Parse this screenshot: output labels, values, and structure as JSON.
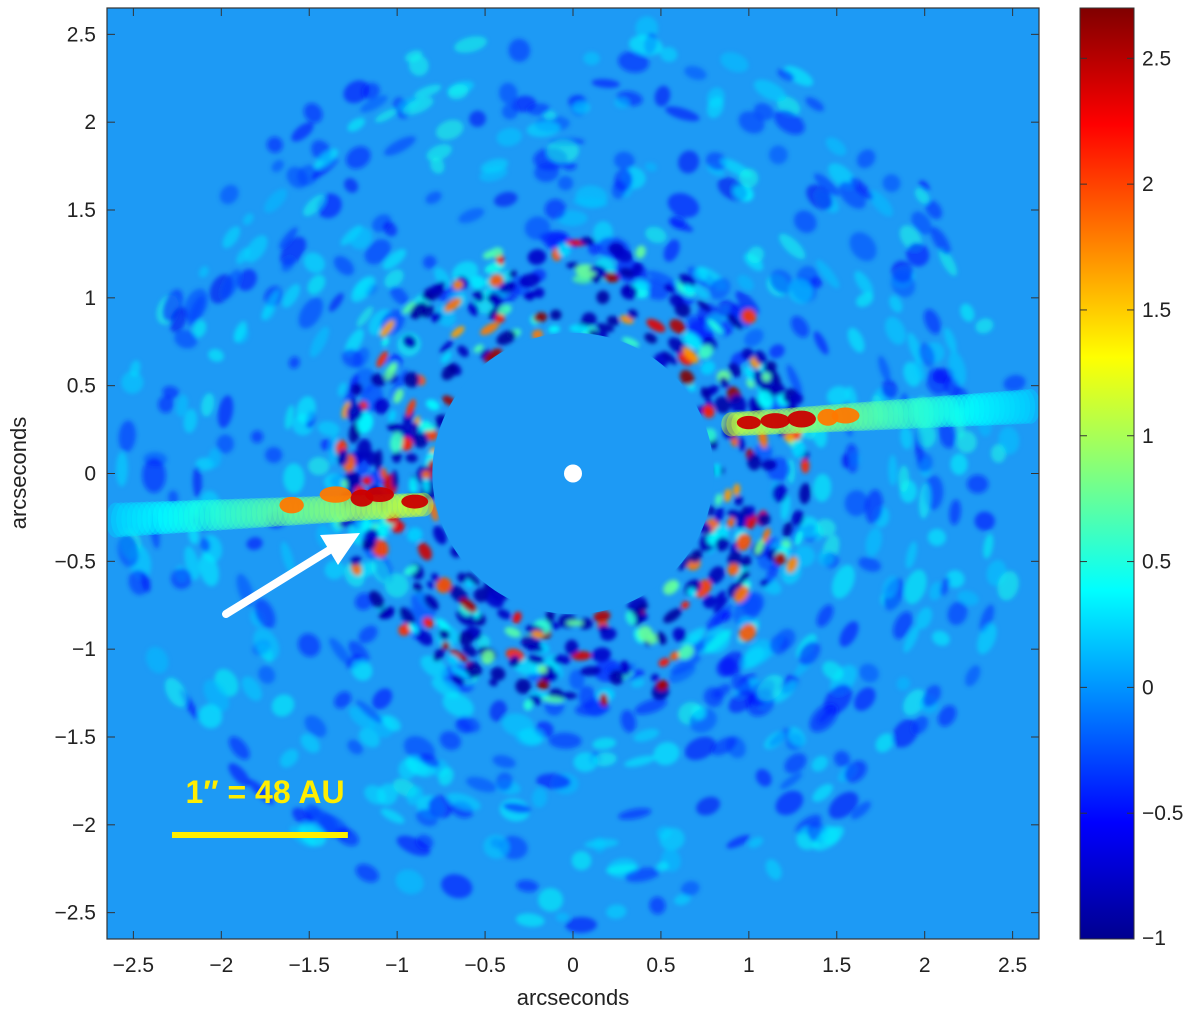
{
  "chart_data": {
    "type": "heatmap",
    "title": "",
    "xlabel": "arcseconds",
    "ylabel": "arcseconds",
    "xlim": [
      -2.65,
      2.65
    ],
    "ylim": [
      -2.65,
      2.65
    ],
    "x_ticks": [
      -2.5,
      -2,
      -1.5,
      -1,
      -0.5,
      0,
      0.5,
      1,
      1.5,
      2,
      2.5
    ],
    "y_ticks": [
      -2.5,
      -2,
      -1.5,
      -1,
      -0.5,
      0,
      0.5,
      1,
      1.5,
      2,
      2.5
    ],
    "colorbar": {
      "range": [
        -1,
        2.7
      ],
      "ticks": [
        -1,
        -0.5,
        0,
        0.5,
        1,
        1.5,
        2,
        2.5
      ],
      "colormap": "jet"
    },
    "mask_radius": 0.8,
    "field_radius": 2.6,
    "star_position": [
      0,
      0
    ],
    "disk_features": [
      {
        "side": "east",
        "x_range": [
          0.9,
          2.6
        ],
        "y_center": 0.28,
        "peak": 2.7
      },
      {
        "side": "west",
        "x_range": [
          -2.6,
          -0.85
        ],
        "y_center": -0.18,
        "peak": 2.7
      }
    ],
    "annotations": {
      "scale_label": "1″ = 48 AU",
      "scale_length": 1,
      "scale_color": "#ffee00",
      "arrow_color": "#ffffff"
    }
  }
}
